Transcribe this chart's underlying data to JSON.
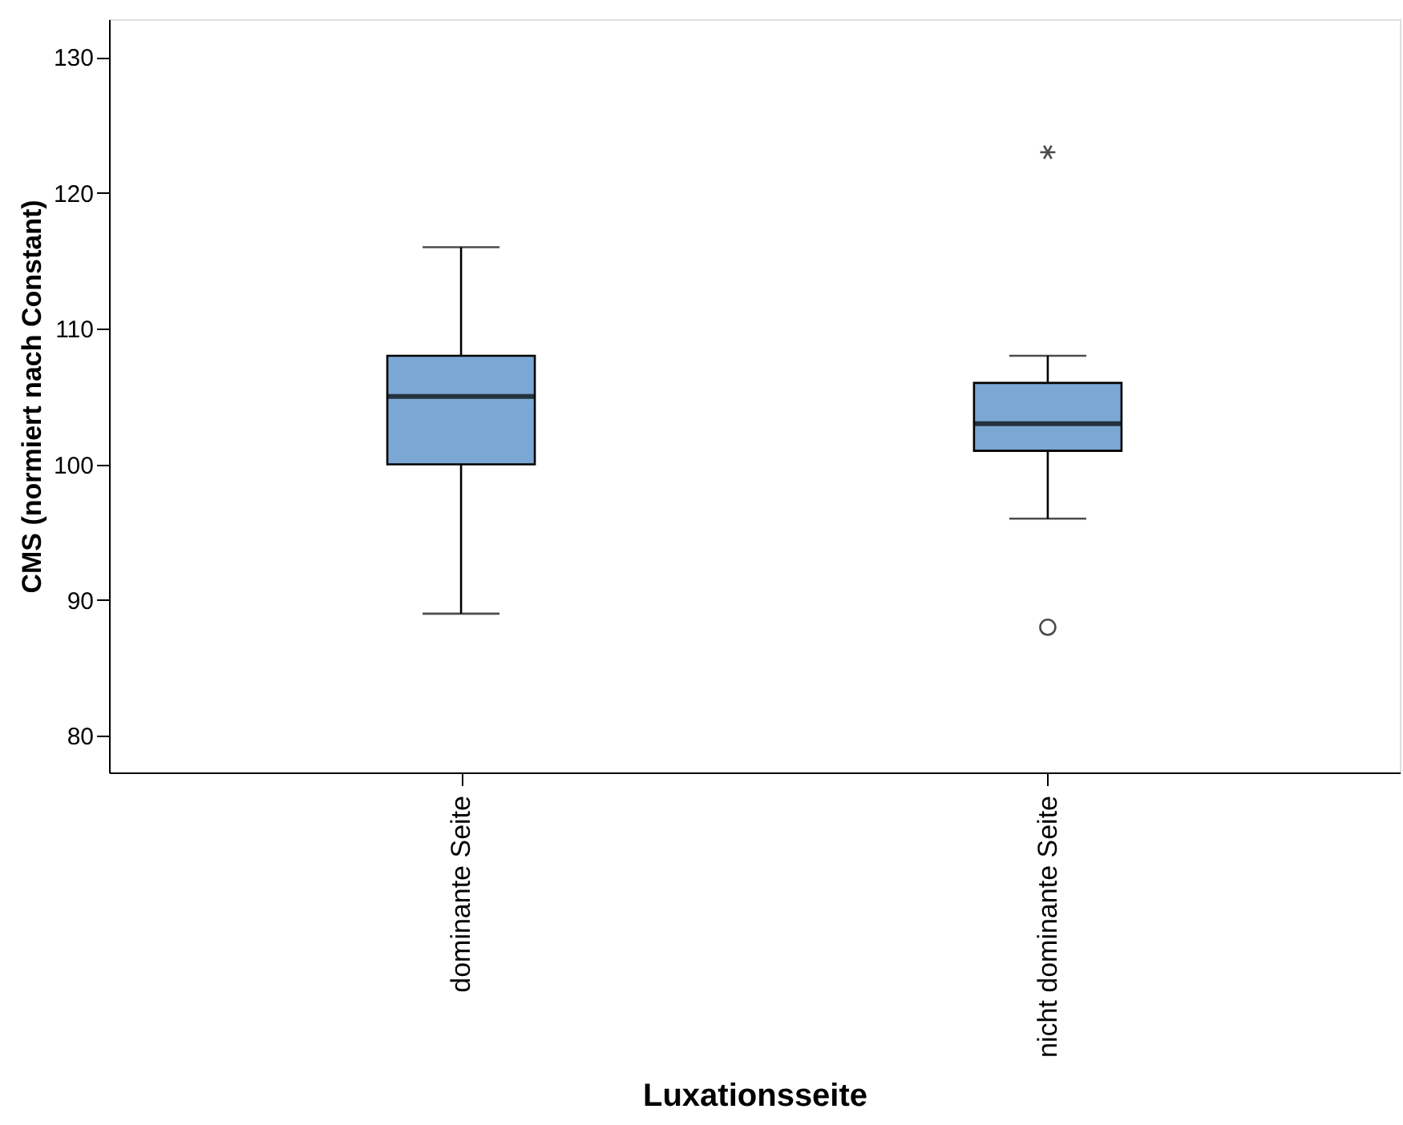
{
  "chart_data": {
    "type": "box",
    "xlabel": "Luxationsseite",
    "ylabel": "CMS (normiert nach Constant)",
    "categories": [
      "dominante Seite",
      "nicht dominante Seite"
    ],
    "series": [
      {
        "color": "#7ba7d4",
        "boxes": [
          {
            "low": 89,
            "q1": 100,
            "median": 105,
            "q3": 108,
            "high": 116
          },
          {
            "low": 96,
            "q1": 101,
            "median": 103,
            "q3": 106,
            "high": 108,
            "outliers": [
              88,
              123
            ]
          }
        ]
      }
    ],
    "ylim": [
      77.3,
      132.8
    ],
    "yticks": [
      80,
      90,
      100,
      110,
      120,
      130
    ],
    "grid": false
  }
}
